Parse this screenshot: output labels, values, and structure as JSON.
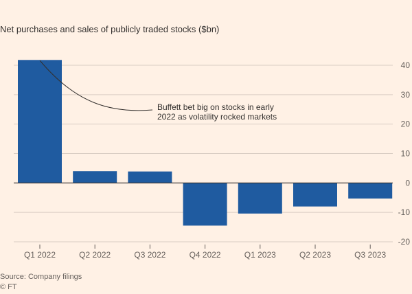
{
  "chart_data": {
    "type": "bar",
    "title": "Net purchases and sales of publicly traded stocks ($bn)",
    "categories": [
      "Q1 2022",
      "Q2 2022",
      "Q3 2022",
      "Q4 2022",
      "Q1 2023",
      "Q2 2023",
      "Q3 2023"
    ],
    "values": [
      41.8,
      4.0,
      3.9,
      -14.5,
      -10.4,
      -8.0,
      -5.3
    ],
    "ylim": [
      -20,
      40
    ],
    "yticks": [
      40,
      30,
      20,
      10,
      0,
      -10,
      -20
    ],
    "grid": true,
    "y_axis_side": "right",
    "bar_color": "#1f5ba0",
    "annotation": {
      "lines": [
        "Buffett bet big on stocks in early",
        "2022 as volatility rocked markets"
      ],
      "points_to": "Q1 2022"
    }
  },
  "source": "Source: Company filings",
  "credit": "© FT"
}
